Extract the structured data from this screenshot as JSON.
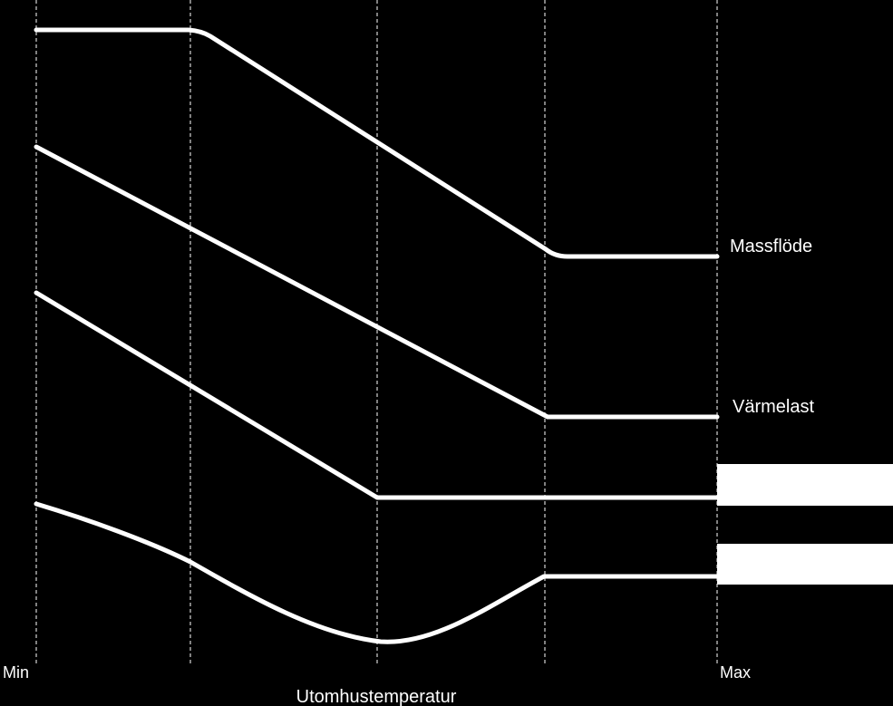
{
  "chart_data": {
    "type": "line",
    "title": "",
    "xlabel": "Utomhustemperatur",
    "ylabel": "",
    "x_tick_labels": [
      "Min",
      "Max"
    ],
    "grid": "vertical dashed guide lines",
    "series": [
      {
        "name": "Massflöde",
        "shape": "constant at high level, decreases linearly, then constant at low level"
      },
      {
        "name": "Värmelast",
        "shape": "decreases linearly from min temperature, then constant"
      },
      {
        "name": "",
        "shape": "decreases linearly, then constant (label hidden)"
      },
      {
        "name": "",
        "shape": "dips to a minimum at mid temperature, rises, then constant (label hidden)"
      }
    ],
    "colors": {
      "background": "#000000",
      "line": "#ffffff",
      "label_cover": "#ffffff"
    }
  }
}
